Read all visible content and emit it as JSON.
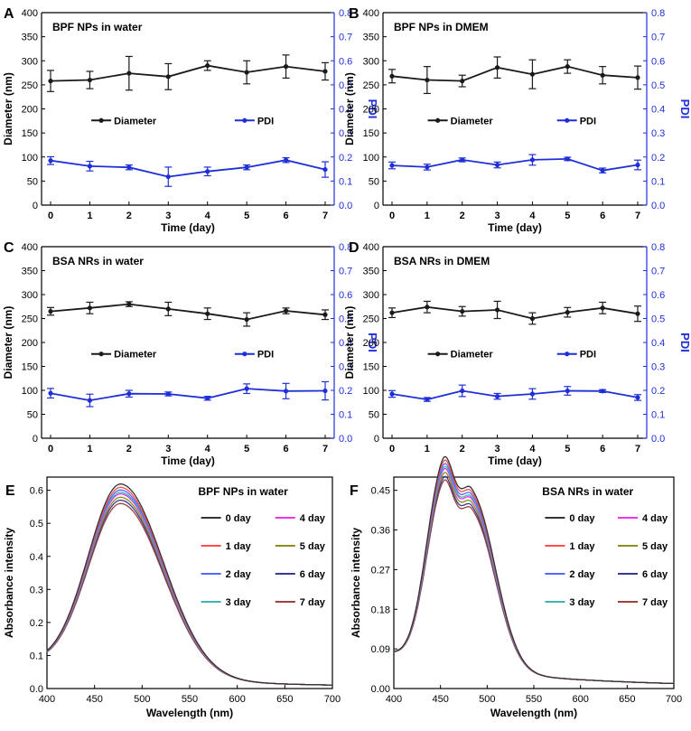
{
  "colors": {
    "diameter": "#1a1a1a",
    "pdi": "#1f2fd8",
    "axis": "#000000",
    "right_axis": "#1f2fd8"
  },
  "panels_top": [
    {
      "letter": "A",
      "title": "BPF NPs in water",
      "type": "line",
      "x": [
        0,
        1,
        2,
        3,
        4,
        5,
        6,
        7
      ],
      "xticks": [
        "0",
        "1",
        "2",
        "3",
        "4",
        "5",
        "6",
        "7"
      ],
      "xlabel": "Time (day)",
      "ylabel": "Diameter (nm)",
      "y2label": "PDI",
      "yticks": [
        "0",
        "50",
        "100",
        "150",
        "200",
        "250",
        "300",
        "350",
        "400"
      ],
      "y2ticks": [
        "0.0",
        "0.1",
        "0.2",
        "0.3",
        "0.4",
        "0.5",
        "0.6",
        "0.7",
        "0.8"
      ],
      "ylim": [
        0,
        400
      ],
      "y2lim": [
        0,
        0.8
      ],
      "legend": [
        "Diameter",
        "PDI"
      ],
      "diameter": [
        258,
        260,
        274,
        267,
        290,
        276,
        288,
        278
      ],
      "diameter_err": [
        22,
        18,
        35,
        27,
        10,
        24,
        24,
        18
      ],
      "pdi": [
        0.185,
        0.162,
        0.157,
        0.118,
        0.14,
        0.157,
        0.187,
        0.148
      ],
      "pdi_err": [
        0.016,
        0.02,
        0.01,
        0.04,
        0.018,
        0.01,
        0.01,
        0.032
      ]
    },
    {
      "letter": "B",
      "title": "BPF NPs in DMEM",
      "type": "line",
      "x": [
        0,
        1,
        2,
        3,
        4,
        5,
        6,
        7
      ],
      "xticks": [
        "0",
        "1",
        "2",
        "3",
        "4",
        "5",
        "6",
        "7"
      ],
      "xlabel": "Time (day)",
      "ylabel": "Diameter (nm)",
      "y2label": "PDI",
      "yticks": [
        "0",
        "50",
        "100",
        "150",
        "200",
        "250",
        "300",
        "350",
        "400"
      ],
      "y2ticks": [
        "0.0",
        "0.1",
        "0.2",
        "0.3",
        "0.4",
        "0.5",
        "0.6",
        "0.7",
        "0.8"
      ],
      "ylim": [
        0,
        400
      ],
      "y2lim": [
        0,
        0.8
      ],
      "legend": [
        "Diameter",
        "PDI"
      ],
      "diameter": [
        268,
        260,
        258,
        286,
        272,
        288,
        270,
        265
      ],
      "diameter_err": [
        14,
        28,
        12,
        22,
        30,
        14,
        18,
        24
      ],
      "pdi": [
        0.165,
        0.158,
        0.188,
        0.167,
        0.188,
        0.192,
        0.144,
        0.167
      ],
      "pdi_err": [
        0.014,
        0.012,
        0.008,
        0.012,
        0.022,
        0.007,
        0.01,
        0.02
      ]
    },
    {
      "letter": "C",
      "title": "BSA NRs in water",
      "type": "line",
      "x": [
        0,
        1,
        2,
        3,
        4,
        5,
        6,
        7
      ],
      "xticks": [
        "0",
        "1",
        "2",
        "3",
        "4",
        "5",
        "6",
        "7"
      ],
      "xlabel": "Time (day)",
      "ylabel": "Diameter (nm)",
      "y2label": "PDI",
      "yticks": [
        "0",
        "50",
        "100",
        "150",
        "200",
        "250",
        "300",
        "350",
        "400"
      ],
      "y2ticks": [
        "0.0",
        "0.1",
        "0.2",
        "0.3",
        "0.4",
        "0.5",
        "0.6",
        "0.7",
        "0.8"
      ],
      "ylim": [
        0,
        400
      ],
      "y2lim": [
        0,
        0.8
      ],
      "legend": [
        "Diameter",
        "PDI"
      ],
      "diameter": [
        265,
        272,
        280,
        270,
        260,
        248,
        266,
        258
      ],
      "diameter_err": [
        8,
        12,
        5,
        14,
        12,
        14,
        6,
        10
      ],
      "pdi": [
        0.188,
        0.158,
        0.186,
        0.185,
        0.167,
        0.207,
        0.197,
        0.198
      ],
      "pdi_err": [
        0.02,
        0.026,
        0.014,
        0.008,
        0.008,
        0.02,
        0.032,
        0.038
      ]
    },
    {
      "letter": "D",
      "title": "BSA NRs in DMEM",
      "type": "line",
      "x": [
        0,
        1,
        2,
        3,
        4,
        5,
        6,
        7
      ],
      "xticks": [
        "0",
        "1",
        "2",
        "3",
        "4",
        "5",
        "6",
        "7"
      ],
      "xlabel": "Time (day)",
      "ylabel": "Diameter (nm)",
      "y2label": "PDI",
      "yticks": [
        "0",
        "50",
        "100",
        "150",
        "200",
        "250",
        "300",
        "350",
        "400"
      ],
      "y2ticks": [
        "0.0",
        "0.1",
        "0.2",
        "0.3",
        "0.4",
        "0.5",
        "0.6",
        "0.7",
        "0.8"
      ],
      "ylim": [
        0,
        400
      ],
      "y2lim": [
        0,
        0.8
      ],
      "legend": [
        "Diameter",
        "PDI"
      ],
      "diameter": [
        262,
        274,
        265,
        268,
        250,
        263,
        272,
        260
      ],
      "diameter_err": [
        10,
        12,
        10,
        18,
        12,
        10,
        12,
        16
      ],
      "pdi": [
        0.185,
        0.162,
        0.198,
        0.175,
        0.185,
        0.198,
        0.197,
        0.17
      ],
      "pdi_err": [
        0.014,
        0.008,
        0.024,
        0.012,
        0.022,
        0.018,
        0.006,
        0.012
      ]
    }
  ],
  "panels_spectra": [
    {
      "letter": "E",
      "title": "BPF NPs in water",
      "type": "line",
      "xlabel": "Wavelength (nm)",
      "ylabel": "Absorbance intensity",
      "xticks": [
        "400",
        "450",
        "500",
        "550",
        "600",
        "650",
        "700"
      ],
      "xlim": [
        400,
        700
      ],
      "yticks": [
        "0.0",
        "0.1",
        "0.2",
        "0.3",
        "0.4",
        "0.5",
        "0.6"
      ],
      "ylim": [
        0,
        0.64
      ],
      "peaks": [
        {
          "center": 478,
          "width": 33
        }
      ],
      "baseline_start": 0.065,
      "series": [
        {
          "name": "0 day",
          "color": "#333333",
          "peak_height": 0.615
        },
        {
          "name": "4 day",
          "color": "#ee33ee",
          "peak_height": 0.585
        },
        {
          "name": "1 day",
          "color": "#ff4b4b",
          "peak_height": 0.605
        },
        {
          "name": "5 day",
          "color": "#8c8c1f",
          "peak_height": 0.575
        },
        {
          "name": "2 day",
          "color": "#5566ff",
          "peak_height": 0.597
        },
        {
          "name": "6 day",
          "color": "#3a3a8f",
          "peak_height": 0.566
        },
        {
          "name": "3 day",
          "color": "#3fb3b3",
          "peak_height": 0.59
        },
        {
          "name": "7 day",
          "color": "#a04040",
          "peak_height": 0.556
        }
      ]
    },
    {
      "letter": "F",
      "title": "BSA NRs in water",
      "type": "line",
      "xlabel": "Wavelength (nm)",
      "ylabel": "Absorbance intensity",
      "xticks": [
        "400",
        "450",
        "500",
        "550",
        "600",
        "650",
        "700"
      ],
      "xlim": [
        400,
        700
      ],
      "yticks": [
        "0.00",
        "0.09",
        "0.18",
        "0.27",
        "0.36",
        "0.45"
      ],
      "ylim": [
        0,
        0.48
      ],
      "peaks": [
        {
          "center": 452,
          "width": 14,
          "value_nm": 452
        },
        {
          "center": 484,
          "width": 19,
          "value_nm": 484
        }
      ],
      "baseline_start": 0.075,
      "series": [
        {
          "name": "0 day",
          "color": "#333333",
          "peak_height": 0.472
        },
        {
          "name": "4 day",
          "color": "#ee33ee",
          "peak_height": 0.448
        },
        {
          "name": "1 day",
          "color": "#ff4b4b",
          "peak_height": 0.465
        },
        {
          "name": "5 day",
          "color": "#8c8c1f",
          "peak_height": 0.44
        },
        {
          "name": "2 day",
          "color": "#5566ff",
          "peak_height": 0.458
        },
        {
          "name": "6 day",
          "color": "#3a3a8f",
          "peak_height": 0.432
        },
        {
          "name": "3 day",
          "color": "#3fb3b3",
          "peak_height": 0.452
        },
        {
          "name": "7 day",
          "color": "#a04040",
          "peak_height": 0.425
        }
      ]
    }
  ],
  "chart_data": [
    {
      "type": "line",
      "title": "BPF NPs in water",
      "xlabel": "Time (day)",
      "ylabel": "Diameter (nm)",
      "y2label": "PDI",
      "x": [
        0,
        1,
        2,
        3,
        4,
        5,
        6,
        7
      ],
      "ylim": [
        0,
        400
      ],
      "y2lim": [
        0,
        0.8
      ],
      "series": [
        {
          "name": "Diameter",
          "values": [
            258,
            260,
            274,
            267,
            290,
            276,
            288,
            278
          ]
        },
        {
          "name": "PDI",
          "values": [
            0.185,
            0.162,
            0.157,
            0.118,
            0.14,
            0.157,
            0.187,
            0.148
          ]
        }
      ]
    },
    {
      "type": "line",
      "title": "BPF NPs in DMEM",
      "xlabel": "Time (day)",
      "ylabel": "Diameter (nm)",
      "y2label": "PDI",
      "x": [
        0,
        1,
        2,
        3,
        4,
        5,
        6,
        7
      ],
      "ylim": [
        0,
        400
      ],
      "y2lim": [
        0,
        0.8
      ],
      "series": [
        {
          "name": "Diameter",
          "values": [
            268,
            260,
            258,
            286,
            272,
            288,
            270,
            265
          ]
        },
        {
          "name": "PDI",
          "values": [
            0.165,
            0.158,
            0.188,
            0.167,
            0.188,
            0.192,
            0.144,
            0.167
          ]
        }
      ]
    },
    {
      "type": "line",
      "title": "BSA NRs in water",
      "xlabel": "Time (day)",
      "ylabel": "Diameter (nm)",
      "y2label": "PDI",
      "x": [
        0,
        1,
        2,
        3,
        4,
        5,
        6,
        7
      ],
      "ylim": [
        0,
        400
      ],
      "y2lim": [
        0,
        0.8
      ],
      "series": [
        {
          "name": "Diameter",
          "values": [
            265,
            272,
            280,
            270,
            260,
            248,
            266,
            258
          ]
        },
        {
          "name": "PDI",
          "values": [
            0.188,
            0.158,
            0.186,
            0.185,
            0.167,
            0.207,
            0.197,
            0.198
          ]
        }
      ]
    },
    {
      "type": "line",
      "title": "BSA NRs in DMEM",
      "xlabel": "Time (day)",
      "ylabel": "Diameter (nm)",
      "y2label": "PDI",
      "x": [
        0,
        1,
        2,
        3,
        4,
        5,
        6,
        7
      ],
      "ylim": [
        0,
        400
      ],
      "y2lim": [
        0,
        0.8
      ],
      "series": [
        {
          "name": "Diameter",
          "values": [
            262,
            274,
            265,
            268,
            250,
            263,
            272,
            260
          ]
        },
        {
          "name": "PDI",
          "values": [
            0.185,
            0.162,
            0.198,
            0.175,
            0.185,
            0.198,
            0.197,
            0.17
          ]
        }
      ]
    },
    {
      "type": "line",
      "title": "BPF NPs in water",
      "xlabel": "Wavelength (nm)",
      "ylabel": "Absorbance intensity",
      "xlim": [
        400,
        700
      ],
      "ylim": [
        0,
        0.64
      ],
      "series": [
        {
          "name": "0 day",
          "peak": 0.615
        },
        {
          "name": "1 day",
          "peak": 0.605
        },
        {
          "name": "2 day",
          "peak": 0.597
        },
        {
          "name": "3 day",
          "peak": 0.59
        },
        {
          "name": "4 day",
          "peak": 0.585
        },
        {
          "name": "5 day",
          "peak": 0.575
        },
        {
          "name": "6 day",
          "peak": 0.566
        },
        {
          "name": "7 day",
          "peak": 0.556
        }
      ]
    },
    {
      "type": "line",
      "title": "BSA NRs in water",
      "xlabel": "Wavelength (nm)",
      "ylabel": "Absorbance intensity",
      "xlim": [
        400,
        700
      ],
      "ylim": [
        0,
        0.48
      ],
      "series": [
        {
          "name": "0 day",
          "peak": 0.472
        },
        {
          "name": "1 day",
          "peak": 0.465
        },
        {
          "name": "2 day",
          "peak": 0.458
        },
        {
          "name": "3 day",
          "peak": 0.452
        },
        {
          "name": "4 day",
          "peak": 0.448
        },
        {
          "name": "5 day",
          "peak": 0.44
        },
        {
          "name": "6 day",
          "peak": 0.432
        },
        {
          "name": "7 day",
          "peak": 0.425
        }
      ]
    }
  ]
}
